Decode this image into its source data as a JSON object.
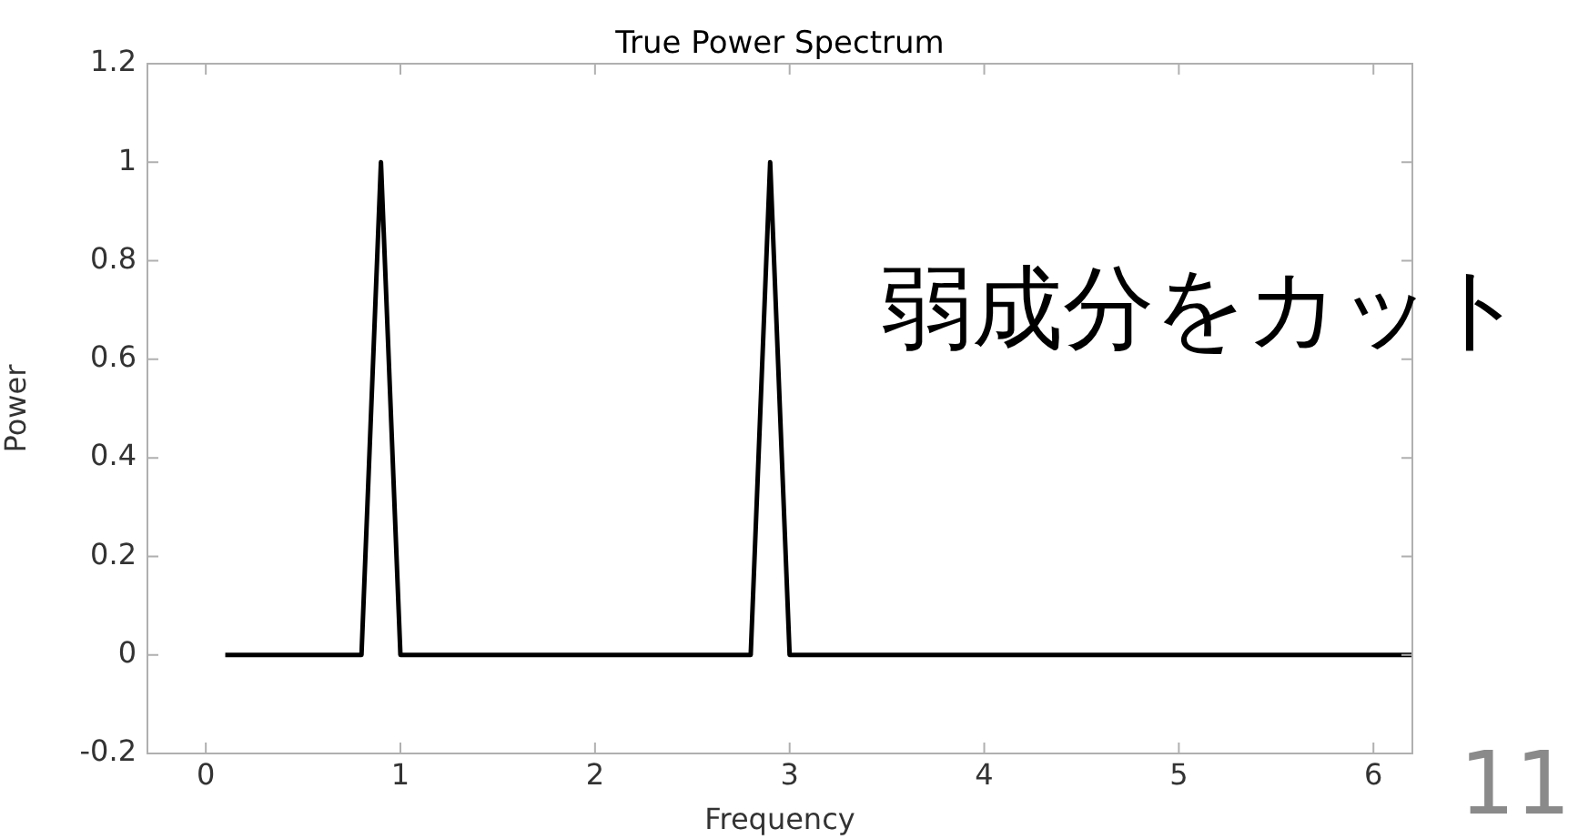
{
  "chart_data": {
    "type": "line",
    "title": "True Power Spectrum",
    "xlabel": "Frequency",
    "ylabel": "Power",
    "x": [
      0.1,
      0.8,
      0.9,
      1.0,
      2.8,
      2.9,
      3.0,
      6.2
    ],
    "series": [
      {
        "color": "#000000",
        "values": [
          0,
          0,
          1,
          0,
          0,
          1,
          0,
          0
        ]
      }
    ],
    "xlim": [
      -0.3,
      6.2
    ],
    "xticks": [
      0,
      1,
      2,
      3,
      4,
      5,
      6
    ],
    "ylim": [
      -0.2,
      1.2
    ],
    "yticks": [
      -0.2,
      0,
      0.2,
      0.4,
      0.6,
      0.8,
      1,
      1.2
    ],
    "marker": "none",
    "line_style": "solid",
    "legend": false,
    "annotations": [
      "弱成分をカット",
      "11"
    ]
  }
}
